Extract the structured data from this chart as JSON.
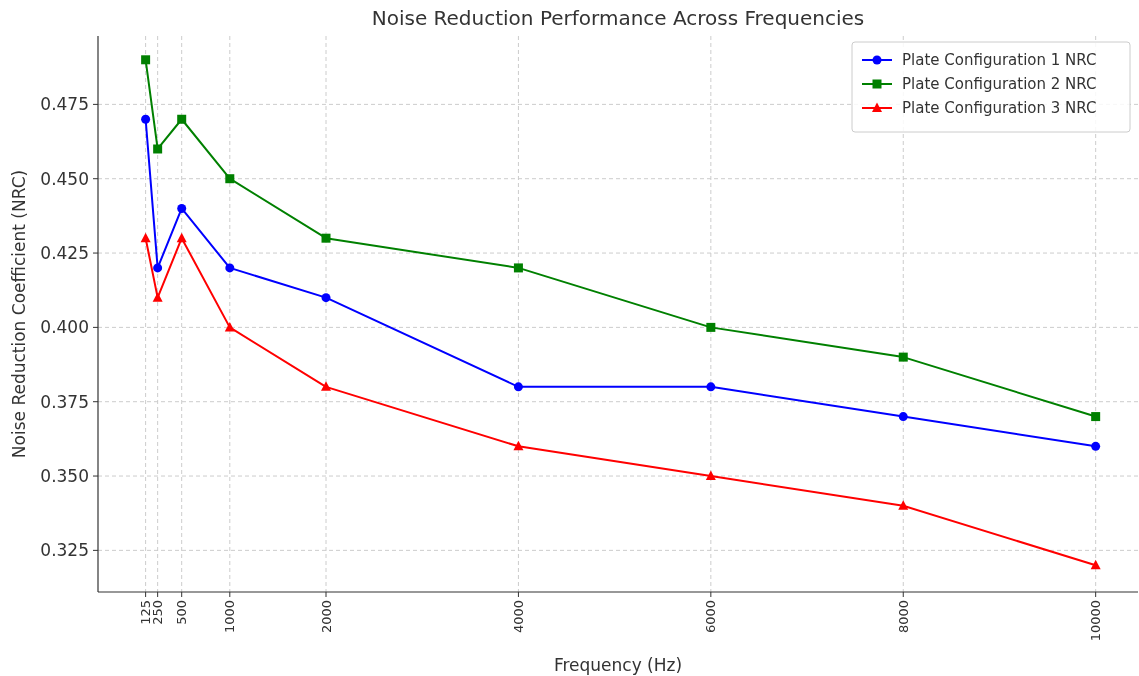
{
  "chart_data": {
    "type": "line",
    "title": "Noise Reduction Performance Across Frequencies",
    "xlabel": "Frequency (Hz)",
    "ylabel": "Noise Reduction Coefficient (NRC)",
    "x": [
      125,
      250,
      500,
      1000,
      2000,
      4000,
      6000,
      8000,
      10000
    ],
    "series": [
      {
        "name": "Plate Configuration 1 NRC",
        "color": "#0000ff",
        "marker": "circle",
        "values": [
          0.47,
          0.42,
          0.44,
          0.42,
          0.41,
          0.38,
          0.38,
          0.37,
          0.36
        ]
      },
      {
        "name": "Plate Configuration 2 NRC",
        "color": "#008000",
        "marker": "square",
        "values": [
          0.49,
          0.46,
          0.47,
          0.45,
          0.43,
          0.42,
          0.4,
          0.39,
          0.37
        ]
      },
      {
        "name": "Plate Configuration 3 NRC",
        "color": "#ff0000",
        "marker": "triangle",
        "values": [
          0.43,
          0.41,
          0.43,
          0.4,
          0.38,
          0.36,
          0.35,
          0.34,
          0.32
        ]
      }
    ],
    "xlim": [
      -370,
      10440
    ],
    "ylim": [
      0.311,
      0.498
    ],
    "xticks": [
      125,
      250,
      500,
      1000,
      2000,
      4000,
      6000,
      8000,
      10000
    ],
    "yticks": [
      {
        "value": 0.325,
        "label": "0.325"
      },
      {
        "value": 0.35,
        "label": "0.350"
      },
      {
        "value": 0.375,
        "label": "0.375"
      },
      {
        "value": 0.4,
        "label": "0.400"
      },
      {
        "value": 0.425,
        "label": "0.425"
      },
      {
        "value": 0.45,
        "label": "0.450"
      },
      {
        "value": 0.475,
        "label": "0.475"
      }
    ],
    "grid": true,
    "legend": "top right",
    "line_style": "solid"
  }
}
